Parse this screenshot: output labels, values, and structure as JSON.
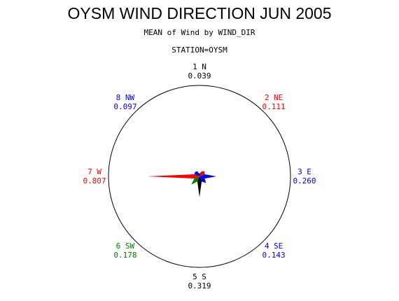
{
  "chart_data": {
    "type": "star",
    "title": "OYSM WIND DIRECTION JUN 2005",
    "subtitle": "MEAN of Wind by WIND_DIR",
    "group_label": "STATION=OYSM",
    "categories": [
      "1 N",
      "2 NE",
      "3 E",
      "4 SE",
      "5 S",
      "6 SW",
      "7 W",
      "8 NW"
    ],
    "values": [
      0.039,
      0.111,
      0.26,
      0.143,
      0.319,
      0.178,
      0.807,
      0.097
    ],
    "value_labels": [
      "0.039",
      "0.111",
      "0.260",
      "0.143",
      "0.319",
      "0.178",
      "0.807",
      "0.097"
    ],
    "colors": [
      "#000000",
      "#ff0000",
      "#0000ff",
      "#0000ff",
      "#000000",
      "#008000",
      "#ff0000",
      "#0000ff"
    ],
    "rlim": [
      0,
      1.4
    ]
  }
}
